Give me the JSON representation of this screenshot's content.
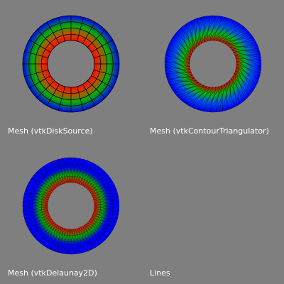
{
  "viewports": [
    {
      "caption": "Mesh (vtkDiskSource)"
    },
    {
      "caption": "Mesh (vtkContourTriangulator)"
    },
    {
      "caption": "Mesh (vtkDelaunay2D)"
    },
    {
      "caption": "Lines"
    }
  ],
  "colors": {
    "background": "#7f7f7f",
    "caption_text": "#ffffff",
    "ring_outer": "#0000ff",
    "ring_mid": "#00a000",
    "ring_inner": "#ff0000",
    "mesh_edges": "#000000"
  }
}
